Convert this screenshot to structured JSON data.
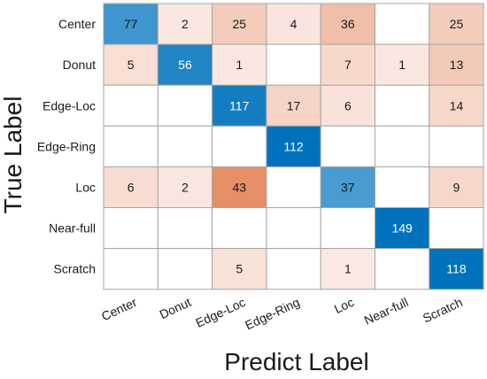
{
  "chart_data": {
    "type": "heatmap",
    "xlabel": "Predict Label",
    "ylabel": "True Label",
    "row_labels": [
      "Center",
      "Donut",
      "Edge-Loc",
      "Edge-Ring",
      "Loc",
      "Near-full",
      "Scratch"
    ],
    "col_labels": [
      "Center",
      "Donut",
      "Edge-Loc",
      "Edge-Ring",
      "Loc",
      "Near-full",
      "Scratch"
    ],
    "matrix": [
      [
        77,
        2,
        25,
        4,
        36,
        null,
        25
      ],
      [
        5,
        56,
        1,
        null,
        7,
        1,
        13
      ],
      [
        null,
        null,
        117,
        17,
        6,
        null,
        14
      ],
      [
        null,
        null,
        null,
        112,
        null,
        null,
        null
      ],
      [
        6,
        2,
        43,
        null,
        37,
        null,
        9
      ],
      [
        null,
        null,
        null,
        null,
        null,
        149,
        null
      ],
      [
        null,
        null,
        5,
        null,
        1,
        null,
        118
      ]
    ],
    "colors": {
      "diagonal": "#0072BD",
      "off_diagonal": "#D95319",
      "grid": "#a6a6a6",
      "text_dark": "#1a1a1a",
      "text_light": "#ffffff"
    }
  }
}
